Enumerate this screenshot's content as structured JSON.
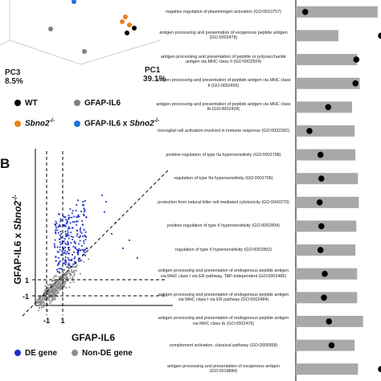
{
  "panel_b_letter": "B",
  "pca": {
    "pc3_label": "PC3",
    "pc3_value": "8.5%",
    "pc1_label": "PC1",
    "pc1_value": "39.1%",
    "legend": [
      {
        "label": "WT",
        "color": "#000000"
      },
      {
        "label": "GFAP-IL6",
        "color": "#808080"
      },
      {
        "label": "Sbno2",
        "sup": "-/-",
        "color": "#e8821e"
      },
      {
        "label": "GFAP-IL6 x ",
        "italic": "Sbno2",
        "sup": "-/-",
        "color": "#1e6fe0"
      }
    ]
  },
  "scatter": {
    "xlabel": "GFAP-IL6",
    "ylabel_prefix": "GFAP-IL6 x ",
    "ylabel_italic": "Sbno2",
    "ylabel_sup": "-/-",
    "x_ticks": [
      "-1",
      "1"
    ],
    "y_ticks": [
      "1",
      "-1"
    ],
    "legend": [
      {
        "label": "DE gene",
        "color": "#1f2ec9"
      },
      {
        "label": "Non-DE gene",
        "color": "#8c8c8c"
      }
    ]
  },
  "chart_data": [
    {
      "type": "scatter",
      "subtype": "pca-3d",
      "series": [
        {
          "name": "WT",
          "color": "#000000"
        },
        {
          "name": "GFAP-IL6",
          "color": "#808080"
        },
        {
          "name": "Sbno2-/-",
          "color": "#e8821e"
        },
        {
          "name": "GFAP-IL6 x Sbno2-/-",
          "color": "#1e6fe0"
        }
      ]
    },
    {
      "type": "scatter",
      "xlabel": "GFAP-IL6",
      "ylabel": "GFAP-IL6 x Sbno2-/-",
      "reference_lines": {
        "x": [
          -1,
          1
        ],
        "y": [
          -1,
          1
        ],
        "diagonal": true
      },
      "series": [
        {
          "name": "DE gene",
          "color": "#1f2ec9"
        },
        {
          "name": "Non-DE gene",
          "color": "#8c8c8c"
        }
      ]
    },
    {
      "type": "bar",
      "orientation": "horizontal",
      "bar_color": "#a8a8a8",
      "dot_color": "#000000",
      "categories": [
        "negative regulation of plasminogen activation (GO:0010757)",
        "antigen processing and presentation of exogenous peptide antigen (GO:0002478)",
        "antigen processing and presentation of peptide or polysaccharide antigen via MHC class II (GO:0002504)",
        "antigen processing and presentation of peptide antigen via MHC class II (GO:0002495)",
        "antigen processing and presentation of peptide antigen via MHC class Ib (GO:0002428)",
        "microglial cell activation involved in immune response (GO:0002282)",
        "positive regulation of type IIa hypersensitivity (GO:0001798)",
        "regulation of type IIa hypersensitivity (GO:0001796)",
        "protection from natural killer cell mediated cytotoxicity (GO:0042270)",
        "positive regulation of type II hypersensitivity (GO:0002894)",
        "regulation of type II hypersensitivity (GO:0002892)",
        "antigen processing and presentation of endogenous peptide antigen via MHC class I via ER pathway, TAP-independent (GO:0002486)",
        "antigen processing and presentation of endogenous peptide antigen via MHC class I via ER pathway (GO:0002484)",
        "antigen processing and presentation of endogenous peptide antigen via MHC class Ib (GO:0002476)",
        "complement activation, classical pathway (GO:0006958)",
        "antigen processing and presentation of exogenous antigen (GO:0019884)"
      ],
      "values": [
        0.96,
        0.5,
        0.72,
        0.75,
        0.66,
        0.69,
        0.7,
        0.73,
        0.74,
        0.71,
        0.7,
        0.72,
        0.72,
        0.79,
        0.69,
        0.73
      ],
      "dot_values": [
        0.11,
        1.0,
        0.71,
        0.7,
        0.38,
        0.16,
        0.29,
        0.3,
        0.28,
        0.3,
        0.29,
        0.34,
        0.33,
        0.39,
        0.42,
        1.0
      ]
    }
  ]
}
